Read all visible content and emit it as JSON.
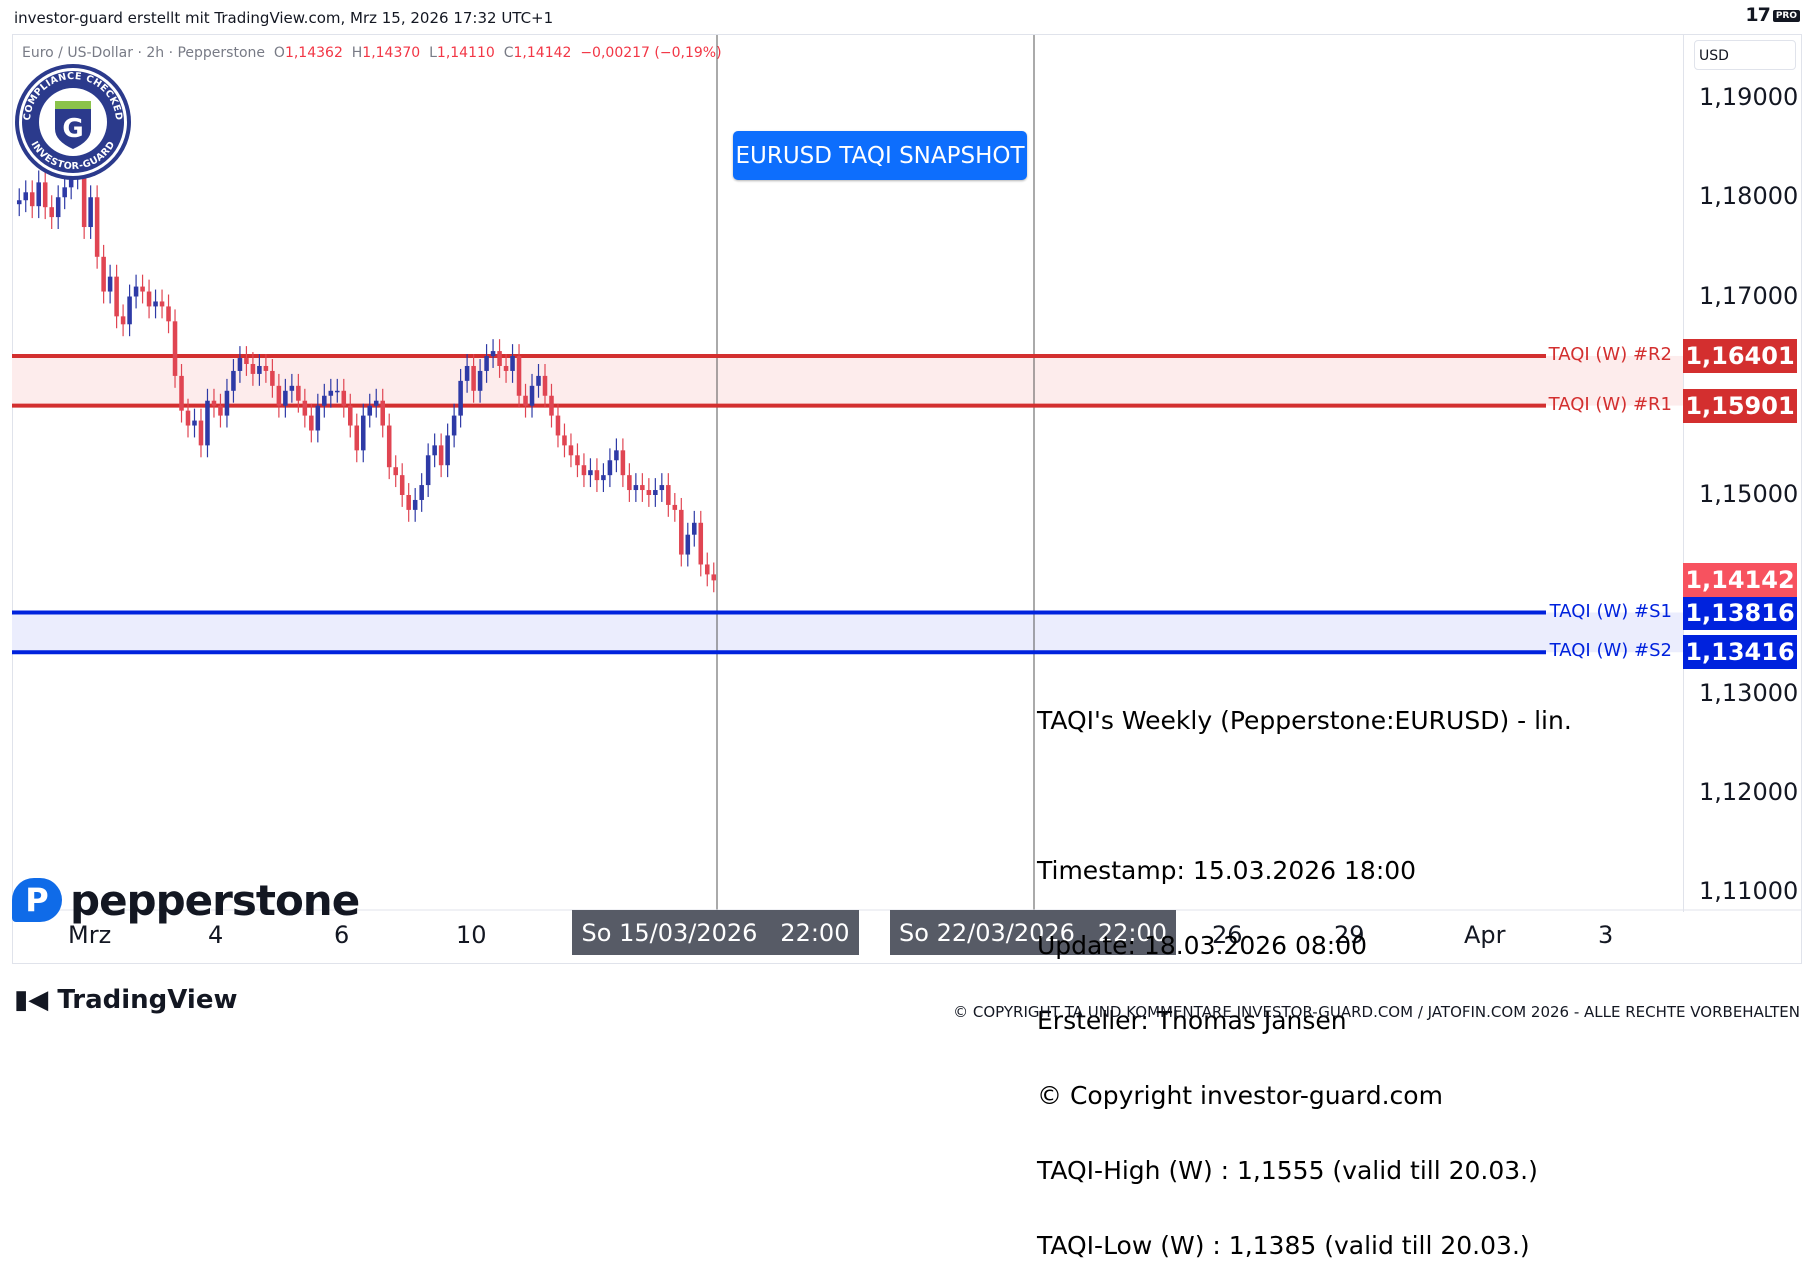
{
  "header": {
    "text": "investor-guard erstellt mit TradingView.com, Mrz 15, 2026 17:32 UTC+1",
    "logo_text": "17",
    "logo_badge": "PRO"
  },
  "symbol": {
    "name": "Euro / US-Dollar · 2h · Pepperstone",
    "o_label": "O",
    "o": "1,14362",
    "h_label": "H",
    "h": "1,14370",
    "l_label": "L",
    "l": "1,14110",
    "c_label": "C",
    "c": "1,14142",
    "change": "−0,00217 (−0,19%)"
  },
  "badge": {
    "top_text": "COMPLIANCE CHECKED",
    "bottom_text": "INVESTOR-GUARD",
    "letter": "G"
  },
  "snapshot_label": "EURUSD TAQI SNAPSHOT",
  "currency": "USD",
  "chart_data": {
    "type": "candlestick",
    "y_axis": {
      "min": 1.105,
      "max": 1.195,
      "ticks": [
        "1,19000",
        "1,18000",
        "1,17000",
        "1,15000",
        "1,13000",
        "1,12000",
        "1,11000"
      ]
    },
    "x_ticks": [
      "Mrz",
      "4",
      "6",
      "10",
      "26",
      "29",
      "Apr",
      "3"
    ],
    "x_highlights": [
      "So 15/03/2026   22:00",
      "So 22/03/2026   22:00"
    ],
    "current_price": {
      "value": 1.14142,
      "label": "1,14142",
      "color": "#f7525f"
    },
    "levels": [
      {
        "name": "TAQI (W) #R2",
        "value": 1.16401,
        "label": "1,16401",
        "color": "#d32f2f"
      },
      {
        "name": "TAQI (W) #R1",
        "value": 1.15901,
        "label": "1,15901",
        "color": "#d32f2f"
      },
      {
        "name": "TAQI (W) #S1",
        "value": 1.13816,
        "label": "1,13816",
        "color": "#0022dd"
      },
      {
        "name": "TAQI (W) #S2",
        "value": 1.13416,
        "label": "1,13416",
        "color": "#0022dd"
      }
    ],
    "up_color": "#2e3aa6",
    "down_color": "#e04552",
    "closes": [
      1.1797,
      1.1805,
      1.1791,
      1.1815,
      1.179,
      1.178,
      1.18,
      1.181,
      1.182,
      1.1835,
      1.177,
      1.18,
      1.174,
      1.1705,
      1.172,
      1.168,
      1.1672,
      1.17,
      1.171,
      1.1705,
      1.169,
      1.1695,
      1.169,
      1.1675,
      1.162,
      1.1585,
      1.157,
      1.1575,
      1.155,
      1.1595,
      1.159,
      1.158,
      1.1605,
      1.1625,
      1.1638,
      1.1632,
      1.1622,
      1.163,
      1.1625,
      1.161,
      1.159,
      1.1605,
      1.161,
      1.1595,
      1.158,
      1.1565,
      1.159,
      1.16,
      1.1605,
      1.1605,
      1.159,
      1.157,
      1.1545,
      1.158,
      1.159,
      1.1595,
      1.157,
      1.1528,
      1.152,
      1.15,
      1.1485,
      1.1495,
      1.151,
      1.154,
      1.155,
      1.153,
      1.156,
      1.158,
      1.1615,
      1.163,
      1.1605,
      1.1625,
      1.164,
      1.1645,
      1.163,
      1.1625,
      1.164,
      1.16,
      1.159,
      1.161,
      1.162,
      1.16,
      1.158,
      1.156,
      1.155,
      1.154,
      1.153,
      1.152,
      1.1525,
      1.1515,
      1.152,
      1.1535,
      1.1545,
      1.152,
      1.1505,
      1.151,
      1.1505,
      1.15,
      1.1505,
      1.151,
      1.149,
      1.1485,
      1.144,
      1.146,
      1.1472,
      1.143,
      1.142,
      1.1414
    ]
  },
  "info": {
    "title": "TAQI's Weekly (Pepperstone:EURUSD) - lin.",
    "timestamp": "Timestamp: 15.03.2026 18:00",
    "update": "Update: 18.03.2026 08:00",
    "author": "Ersteller: Thomas Jansen",
    "copyright": "© Copyright investor-guard.com",
    "high": "TAQI-High (W) : 1,1555 (valid till 20.03.)",
    "low": "TAQI-Low (W) : 1,1385 (valid till 20.03.)"
  },
  "pepperstone": {
    "mark": "P",
    "word": "pepperstone"
  },
  "tradingview_logo": "TradingView",
  "footer": "© COPYRIGHT TA UND KOMMENTARE INVESTOR-GUARD.COM / JATOFIN.COM 2026 - ALLE RECHTE VORBEHALTEN"
}
